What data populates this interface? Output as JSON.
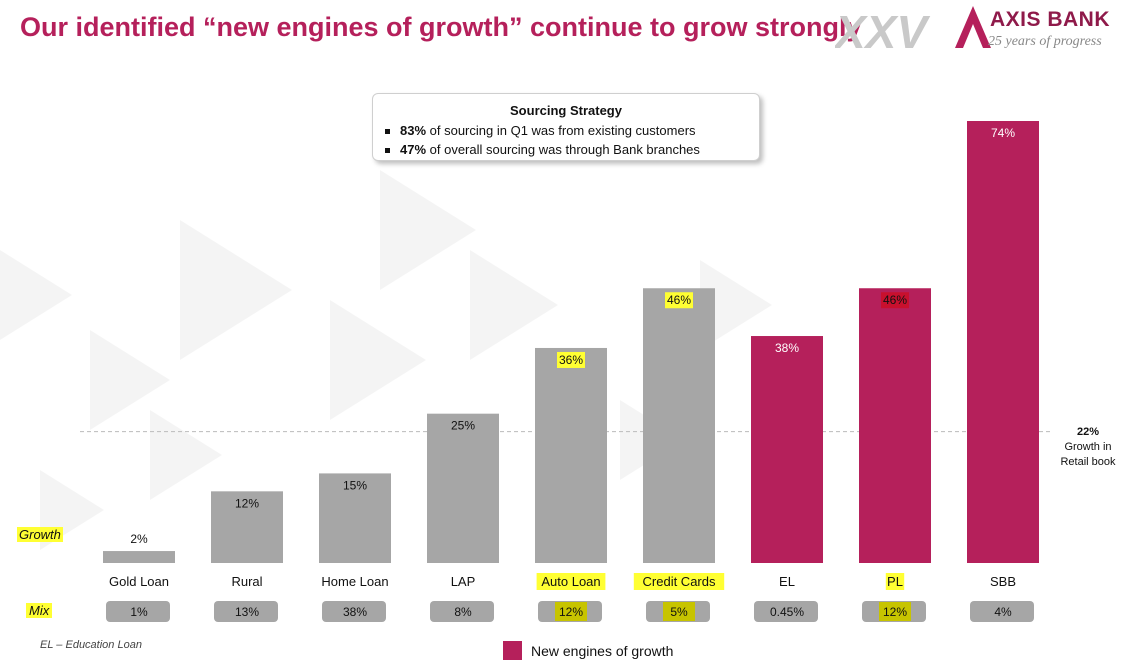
{
  "title": "Our identified “new engines of growth” continue to grow strongly",
  "logo": {
    "mark": "XXV",
    "brand": "AXIS BANK",
    "tagline": "25 years of progress"
  },
  "strategy_box": {
    "title": "Sourcing Strategy",
    "lines": [
      {
        "bold": "83%",
        "text": " of sourcing in Q1 was from existing customers"
      },
      {
        "bold": "47%",
        "text": " of overall sourcing was through Bank branches"
      }
    ]
  },
  "row_labels": {
    "growth": "Growth",
    "mix": "Mix"
  },
  "reference": {
    "value": "22%",
    "line1": "Growth in",
    "line2": "Retail book"
  },
  "footnote": "EL – Education Loan",
  "legend": {
    "label": "New engines of growth",
    "color": "#b5205b"
  },
  "chart_data": {
    "type": "bar",
    "categories": [
      "Gold Loan",
      "Rural",
      "Home Loan",
      "LAP",
      "Auto Loan",
      "Credit Cards",
      "EL",
      "PL",
      "SBB"
    ],
    "values": [
      2,
      12,
      15,
      25,
      36,
      46,
      38,
      46,
      74
    ],
    "value_labels": [
      "2%",
      "12%",
      "15%",
      "25%",
      "36%",
      "46%",
      "38%",
      "46%",
      "74%"
    ],
    "mix_labels": [
      "1%",
      "13%",
      "38%",
      "8%",
      "12%",
      "5%",
      "0.45%",
      "12%",
      "4%"
    ],
    "new_engine": [
      false,
      false,
      false,
      false,
      false,
      false,
      true,
      true,
      true
    ],
    "highlight_category": [
      false,
      false,
      false,
      false,
      true,
      true,
      false,
      true,
      false
    ],
    "highlight_value": [
      false,
      false,
      false,
      false,
      true,
      true,
      false,
      true,
      false
    ],
    "highlight_mix": [
      false,
      false,
      false,
      false,
      true,
      true,
      false,
      true,
      false
    ],
    "reference_value": 22,
    "ylim": [
      0,
      76
    ],
    "colors": {
      "base": "#a6a6a6",
      "new_engine": "#b5205b",
      "highlight": "#ffff33",
      "highlight_on_red": "#c8102e",
      "mix_box": "#a6a6a6"
    }
  }
}
